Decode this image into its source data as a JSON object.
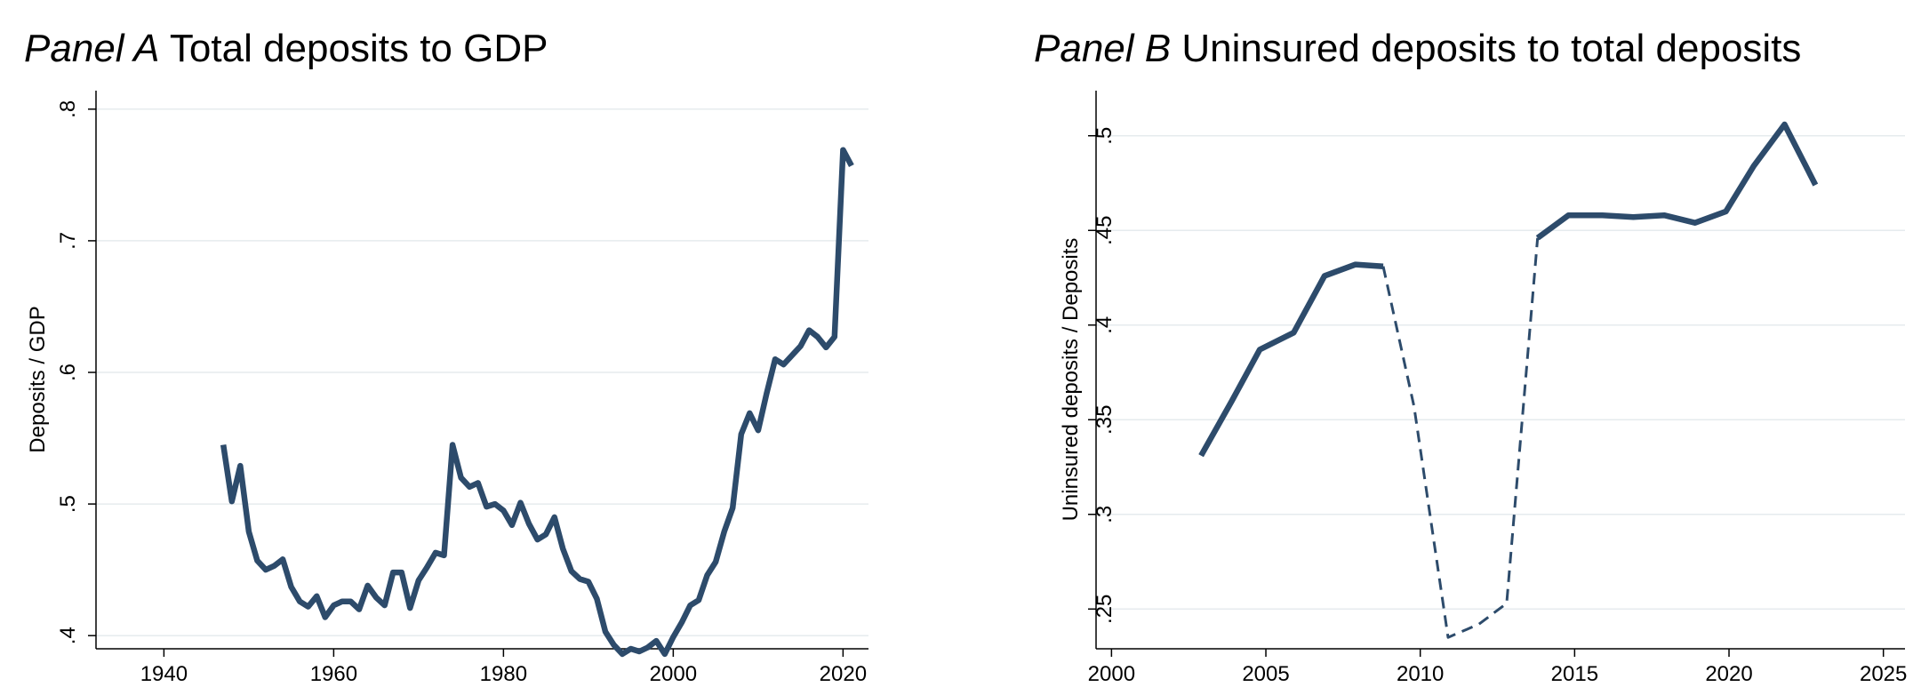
{
  "chart_data": [
    {
      "type": "line",
      "title_prefix": "Panel A",
      "title": "Total deposits to GDP",
      "xlabel": "",
      "ylabel": "Deposits / GDP",
      "xlim": [
        1932,
        2023
      ],
      "ylim": [
        0.39,
        0.81
      ],
      "xticks": [
        1940,
        1960,
        1980,
        2000,
        2020
      ],
      "xtick_labels": [
        "1940",
        "1960",
        "1980",
        "2000",
        "2020"
      ],
      "yticks": [
        0.4,
        0.5,
        0.6,
        0.7,
        0.8
      ],
      "ytick_labels": [
        ".4",
        ".5",
        ".6",
        ".7",
        ".8"
      ],
      "grid": "horizontal",
      "color": "#2d4b6b",
      "series": [
        {
          "style": "solid",
          "x": [
            1947,
            1948,
            1949,
            1950,
            1951,
            1952,
            1953,
            1954,
            1955,
            1956,
            1957,
            1958,
            1959,
            1960,
            1961,
            1962,
            1963,
            1964,
            1965,
            1966,
            1967,
            1968,
            1969,
            1970,
            1971,
            1972,
            1973,
            1974,
            1975,
            1976,
            1977,
            1978,
            1979,
            1980,
            1981,
            1982,
            1983,
            1984,
            1985,
            1986,
            1987,
            1988,
            1989,
            1990,
            1991,
            1992,
            1993,
            1994,
            1995,
            1996,
            1997,
            1998,
            1999,
            2000,
            2001,
            2002,
            2003,
            2004,
            2005,
            2006,
            2007,
            2008,
            2009,
            2010,
            2011,
            2012,
            2013,
            2014,
            2015,
            2016,
            2017,
            2018,
            2019,
            2020,
            2021
          ],
          "y": [
            0.545,
            0.502,
            0.529,
            0.479,
            0.457,
            0.45,
            0.453,
            0.458,
            0.437,
            0.426,
            0.422,
            0.43,
            0.414,
            0.423,
            0.426,
            0.426,
            0.42,
            0.438,
            0.429,
            0.423,
            0.448,
            0.448,
            0.421,
            0.442,
            0.452,
            0.463,
            0.461,
            0.545,
            0.52,
            0.513,
            0.516,
            0.498,
            0.5,
            0.495,
            0.484,
            0.501,
            0.485,
            0.473,
            0.477,
            0.49,
            0.466,
            0.449,
            0.443,
            0.441,
            0.428,
            0.403,
            0.393,
            0.386,
            0.39,
            0.388,
            0.391,
            0.396,
            0.386,
            0.399,
            0.41,
            0.423,
            0.427,
            0.446,
            0.456,
            0.479,
            0.497,
            0.553,
            0.569,
            0.556,
            0.584,
            0.61,
            0.606,
            0.613,
            0.62,
            0.632,
            0.627,
            0.619,
            0.627,
            0.769,
            0.757
          ]
        }
      ]
    },
    {
      "type": "line",
      "title_prefix": "Panel B",
      "title": "Uninsured deposits to total deposits",
      "xlabel": "",
      "ylabel": "Uninsured deposits / Deposits",
      "xlim": [
        1999.5,
        2025.7
      ],
      "ylim": [
        0.229,
        0.521
      ],
      "xticks": [
        2000,
        2005,
        2010,
        2015,
        2020,
        2025
      ],
      "xtick_labels": [
        "2000",
        "2005",
        "2010",
        "2015",
        "2020",
        "2025"
      ],
      "yticks": [
        0.25,
        0.3,
        0.35,
        0.4,
        0.45,
        0.5
      ],
      "ytick_labels": [
        ".25",
        ".3",
        ".35",
        ".4",
        ".45",
        ".5"
      ],
      "grid": "horizontal",
      "color": "#2d4b6b",
      "series": [
        {
          "style": "solid",
          "x": [
            2002.9,
            2003.9,
            2004.8,
            2005.9,
            2006.9,
            2007.9,
            2008.8
          ],
          "y": [
            0.331,
            0.36,
            0.387,
            0.396,
            0.426,
            0.432,
            0.431
          ]
        },
        {
          "style": "dashed",
          "x": [
            2008.8,
            2009.8,
            2010.9,
            2011.9,
            2012.8,
            2013.8
          ],
          "y": [
            0.431,
            0.357,
            0.235,
            0.242,
            0.253,
            0.446
          ]
        },
        {
          "style": "solid",
          "x": [
            2013.8,
            2014.8,
            2015.9,
            2016.9,
            2017.9,
            2018.9,
            2019.9,
            2020.8,
            2021.8,
            2022.8
          ],
          "y": [
            0.446,
            0.458,
            0.458,
            0.457,
            0.458,
            0.454,
            0.46,
            0.484,
            0.506,
            0.474
          ]
        }
      ]
    }
  ]
}
